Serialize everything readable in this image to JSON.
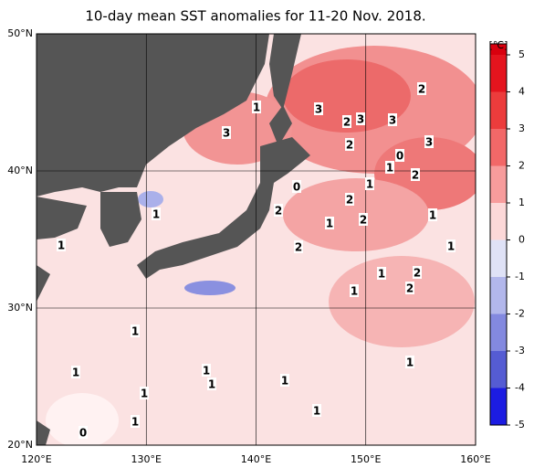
{
  "title": "10-day mean SST anomalies for 11-20 Nov. 2018.",
  "x_labels": [
    "120°E",
    "130°E",
    "140°E",
    "150°E",
    "160°E"
  ],
  "y_labels": [
    "50°N",
    "40°N",
    "30°N",
    "20°N"
  ],
  "colorbar": {
    "unit": "[℃]",
    "ticks": [
      "5",
      "4",
      "3",
      "2",
      "1",
      "0",
      "-1",
      "-2",
      "-3",
      "-4",
      "-5"
    ]
  },
  "contour_labels": [
    "1",
    "3",
    "2",
    "2",
    "3",
    "3",
    "3",
    "2",
    "0",
    "3",
    "1",
    "2",
    "0",
    "1",
    "2",
    "1",
    "2",
    "1",
    "2",
    "1",
    "1",
    "2",
    "1",
    "2",
    "1",
    "2",
    "1",
    "1",
    "1",
    "1",
    "1",
    "1",
    "1",
    "1",
    "1",
    "1",
    "0"
  ]
}
